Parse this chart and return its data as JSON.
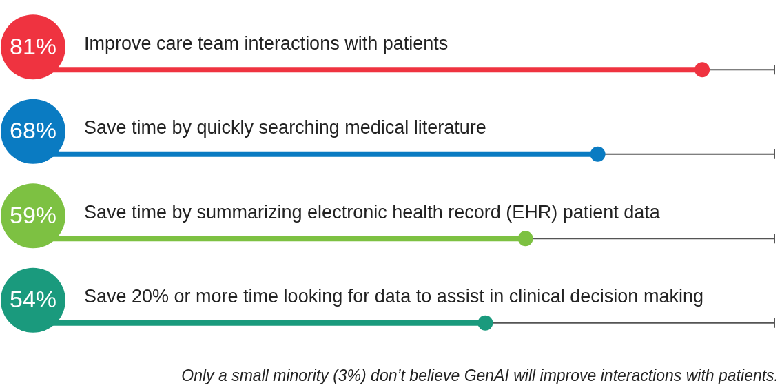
{
  "chart_data": {
    "type": "lollipop",
    "orientation": "horizontal",
    "categories": [
      "Improve care team interactions with patients",
      "Save time by quickly searching medical literature",
      "Save time by summarizing electronic health record (EHR) patient data",
      "Save 20% or more time looking for data to assist in clinical decision making"
    ],
    "values": [
      81,
      68,
      59,
      54
    ],
    "colors": [
      "#ef3340",
      "#0a7bc2",
      "#7dc142",
      "#1a9a7d"
    ],
    "value_labels": [
      "81%",
      "68%",
      "59%",
      "54%"
    ],
    "tick_labels": false,
    "annotations": [
      "Only a small minority (3%) don’t believe GenAI will improve interactions with patients."
    ]
  }
}
